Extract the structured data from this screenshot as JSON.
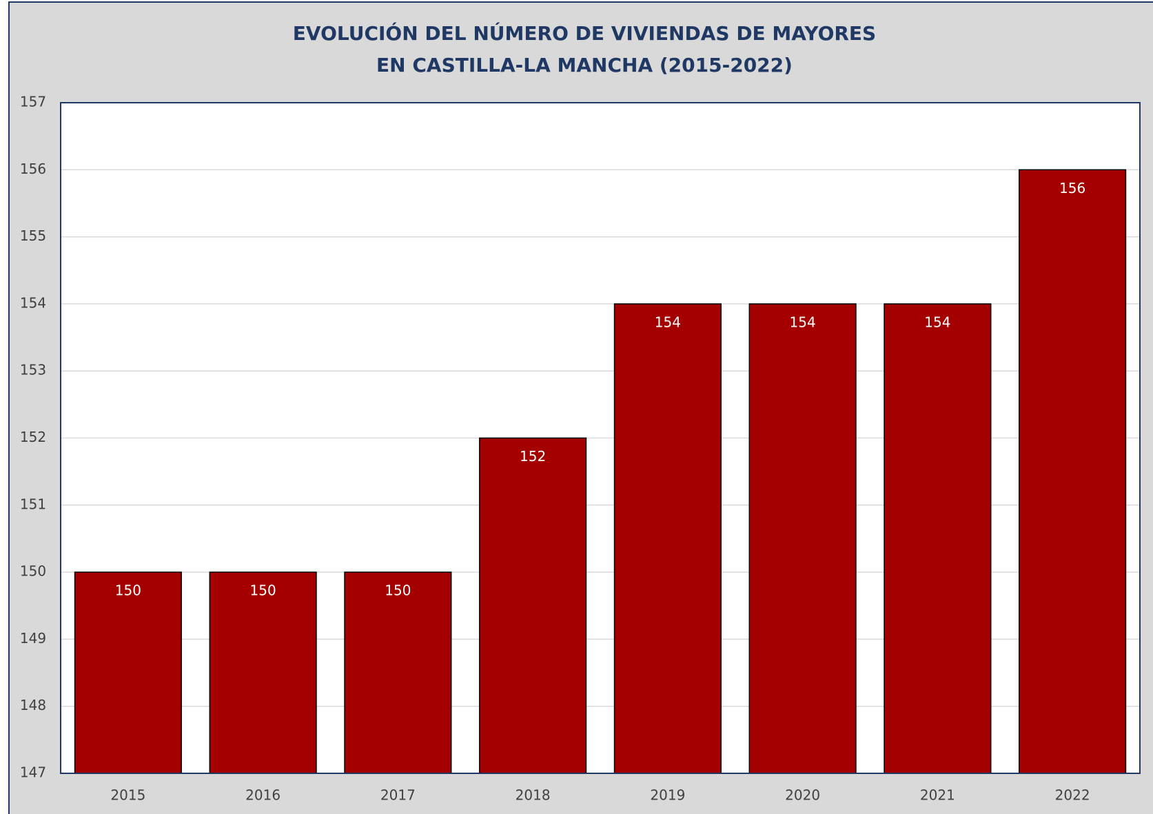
{
  "chart_data": {
    "type": "bar",
    "title": [
      "EVOLUCIÓN DEL NÚMERO DE VIVIENDAS DE MAYORES",
      "EN CASTILLA-LA MANCHA (2015-2022)"
    ],
    "categories": [
      "2015",
      "2016",
      "2017",
      "2018",
      "2019",
      "2020",
      "2021",
      "2022"
    ],
    "values": [
      150,
      150,
      150,
      152,
      154,
      154,
      154,
      156
    ],
    "color": "#a50000",
    "ylim": [
      147,
      157
    ],
    "yticks": [
      147,
      148,
      149,
      150,
      151,
      152,
      153,
      154,
      155,
      156,
      157
    ],
    "grid": true
  }
}
